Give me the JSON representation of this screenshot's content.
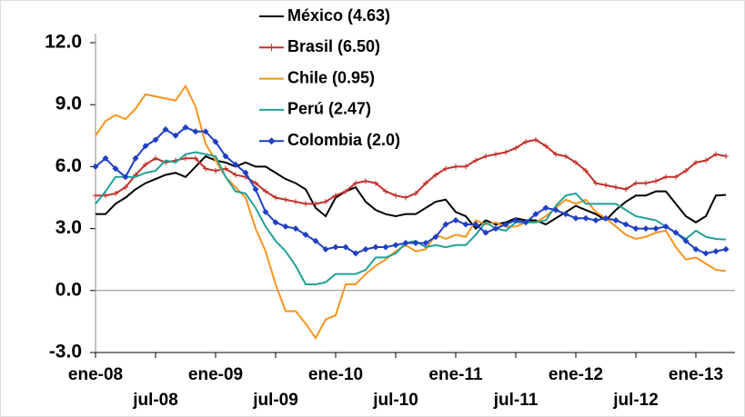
{
  "chart_data": {
    "type": "line",
    "categories": [
      "ene-08",
      null,
      null,
      null,
      null,
      null,
      "jul-08",
      null,
      null,
      null,
      null,
      null,
      "ene-09",
      null,
      null,
      null,
      null,
      null,
      "jul-09",
      null,
      null,
      null,
      null,
      null,
      "ene-10",
      null,
      null,
      null,
      null,
      null,
      "jul-10",
      null,
      null,
      null,
      null,
      null,
      "ene-11",
      null,
      null,
      null,
      null,
      null,
      "jul-11",
      null,
      null,
      null,
      null,
      null,
      "ene-12",
      null,
      null,
      null,
      null,
      null,
      "jul-12",
      null,
      null,
      null,
      null,
      null,
      "ene-13",
      null,
      null,
      null
    ],
    "series": [
      {
        "name": "México (4.63)",
        "color": "#000000",
        "marker": "none",
        "values": [
          3.7,
          3.7,
          4.2,
          4.5,
          4.9,
          5.2,
          5.4,
          5.6,
          5.7,
          5.5,
          6.0,
          6.5,
          6.3,
          6.2,
          6.0,
          6.2,
          6.0,
          6.0,
          5.7,
          5.4,
          5.2,
          4.9,
          4.0,
          3.6,
          4.5,
          4.8,
          5.0,
          4.3,
          3.9,
          3.7,
          3.6,
          3.7,
          3.7,
          4.0,
          4.3,
          4.4,
          3.8,
          3.6,
          3.0,
          3.4,
          3.2,
          3.3,
          3.5,
          3.4,
          3.4,
          3.2,
          3.5,
          3.8,
          4.1,
          3.9,
          3.7,
          3.4,
          3.9,
          4.3,
          4.6,
          4.6,
          4.8,
          4.8,
          4.2,
          3.6,
          3.3,
          3.6,
          4.6,
          4.63
        ]
      },
      {
        "name": "Brasil (6.50)",
        "color": "#c0302a",
        "marker": "plus",
        "values": [
          4.6,
          4.6,
          4.7,
          5.0,
          5.6,
          6.1,
          6.4,
          6.2,
          6.3,
          6.4,
          6.4,
          5.9,
          5.8,
          5.9,
          5.6,
          5.5,
          5.2,
          4.8,
          4.5,
          4.4,
          4.3,
          4.2,
          4.2,
          4.3,
          4.6,
          4.8,
          5.2,
          5.3,
          5.2,
          4.8,
          4.6,
          4.5,
          4.7,
          5.2,
          5.6,
          5.9,
          6.0,
          6.0,
          6.3,
          6.5,
          6.6,
          6.7,
          6.9,
          7.2,
          7.3,
          7.0,
          6.6,
          6.5,
          6.2,
          5.8,
          5.2,
          5.1,
          5.0,
          4.9,
          5.2,
          5.2,
          5.3,
          5.5,
          5.5,
          5.8,
          6.2,
          6.3,
          6.6,
          6.5
        ]
      },
      {
        "name": "Chile (0.95)",
        "color": "#f7941d",
        "marker": "none",
        "values": [
          7.5,
          8.2,
          8.5,
          8.3,
          8.8,
          9.5,
          9.4,
          9.3,
          9.2,
          9.9,
          8.9,
          7.1,
          6.3,
          5.5,
          5.0,
          4.5,
          3.0,
          1.9,
          0.3,
          -1.0,
          -1.0,
          -1.6,
          -2.3,
          -1.4,
          -1.2,
          0.3,
          0.3,
          0.8,
          1.2,
          1.5,
          1.9,
          2.2,
          1.9,
          2.0,
          2.7,
          2.5,
          2.7,
          2.6,
          3.4,
          3.2,
          3.3,
          3.1,
          3.1,
          3.3,
          3.3,
          3.6,
          4.0,
          4.4,
          4.2,
          4.4,
          3.8,
          3.5,
          3.1,
          2.7,
          2.5,
          2.6,
          2.8,
          2.9,
          2.1,
          1.5,
          1.6,
          1.3,
          1.0,
          0.95
        ]
      },
      {
        "name": "Perú (2.47)",
        "color": "#22a096",
        "marker": "none",
        "values": [
          4.2,
          4.8,
          5.5,
          5.5,
          5.5,
          5.7,
          5.8,
          6.3,
          6.2,
          6.6,
          6.7,
          6.6,
          6.5,
          5.5,
          4.8,
          4.7,
          4.0,
          3.1,
          2.4,
          1.9,
          1.2,
          0.3,
          0.3,
          0.4,
          0.8,
          0.8,
          0.8,
          1.0,
          1.6,
          1.6,
          1.8,
          2.3,
          2.4,
          2.1,
          2.2,
          2.1,
          2.2,
          2.2,
          2.7,
          3.3,
          3.0,
          2.9,
          3.3,
          3.3,
          3.3,
          3.4,
          4.1,
          4.6,
          4.7,
          4.2,
          4.2,
          4.2,
          4.2,
          3.9,
          3.6,
          3.5,
          3.4,
          3.1,
          2.8,
          2.5,
          2.9,
          2.6,
          2.5,
          2.47
        ]
      },
      {
        "name": "Colombia (2.0)",
        "color": "#1f3fc4",
        "marker": "diamond",
        "values": [
          6.0,
          6.4,
          5.9,
          5.5,
          6.4,
          7.0,
          7.3,
          7.8,
          7.5,
          7.9,
          7.7,
          7.7,
          7.2,
          6.5,
          6.1,
          5.7,
          4.9,
          3.8,
          3.3,
          3.1,
          3.0,
          2.7,
          2.4,
          2.0,
          2.1,
          2.1,
          1.8,
          2.0,
          2.1,
          2.1,
          2.2,
          2.3,
          2.3,
          2.3,
          2.6,
          3.2,
          3.4,
          3.2,
          3.2,
          2.8,
          3.0,
          3.2,
          3.4,
          3.3,
          3.7,
          4.0,
          3.9,
          3.7,
          3.5,
          3.5,
          3.4,
          3.5,
          3.4,
          3.2,
          3.0,
          3.0,
          3.0,
          3.1,
          2.8,
          2.4,
          2.0,
          1.8,
          1.9,
          2.0
        ]
      }
    ],
    "ylim": [
      -3,
      12
    ],
    "yticks": [
      {
        "value": -3,
        "label": "-3.0"
      },
      {
        "value": 0,
        "label": "0.0"
      },
      {
        "value": 3,
        "label": "3.0"
      },
      {
        "value": 6,
        "label": "6.0"
      },
      {
        "value": 9,
        "label": "9.0"
      },
      {
        "value": 12,
        "label": "12.0"
      }
    ],
    "grid": false,
    "legend": "top"
  }
}
